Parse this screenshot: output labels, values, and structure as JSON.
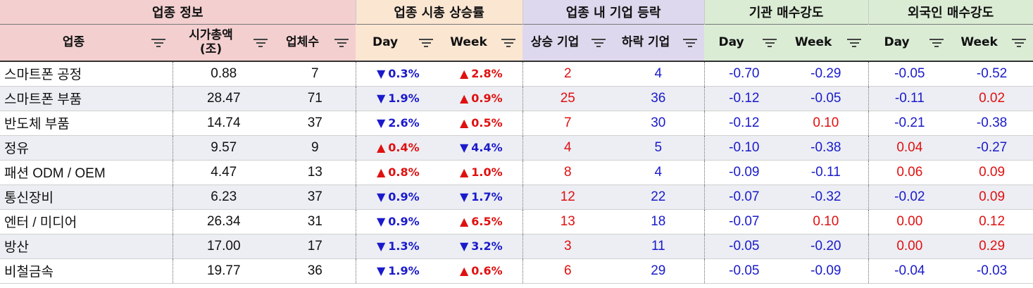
{
  "groups": [
    {
      "label": "업종 정보",
      "span": 3
    },
    {
      "label": "업종 시총 상승률",
      "span": 2
    },
    {
      "label": "업종 내 기업 등락",
      "span": 2
    },
    {
      "label": "기관 매수강도",
      "span": 2
    },
    {
      "label": "외국인 매수강도",
      "span": 2
    }
  ],
  "columns": {
    "sector": "업종",
    "mcap": "시가총액\n(조)",
    "count": "업체수",
    "mcap_day": "Day",
    "mcap_week": "Week",
    "rise": "상승 기업",
    "fall": "하락 기업",
    "inst_day": "Day",
    "inst_week": "Week",
    "for_day": "Day",
    "for_week": "Week"
  },
  "colors": {
    "up": "#e01010",
    "down": "#1a1acc"
  },
  "rows": [
    {
      "sector": "스마트폰 공정",
      "mcap": "0.88",
      "count": "7",
      "day": {
        "dir": "down",
        "v": "0.3%"
      },
      "week": {
        "dir": "up",
        "v": "2.8%"
      },
      "rise": "2",
      "fall": "4",
      "inst_day": "-0.70",
      "inst_week": "-0.29",
      "for_day": "-0.05",
      "for_week": "-0.52"
    },
    {
      "sector": "스마트폰 부품",
      "mcap": "28.47",
      "count": "71",
      "day": {
        "dir": "down",
        "v": "1.9%"
      },
      "week": {
        "dir": "up",
        "v": "0.9%"
      },
      "rise": "25",
      "fall": "36",
      "inst_day": "-0.12",
      "inst_week": "-0.05",
      "for_day": "-0.11",
      "for_week": "0.02"
    },
    {
      "sector": "반도체 부품",
      "mcap": "14.74",
      "count": "37",
      "day": {
        "dir": "down",
        "v": "2.6%"
      },
      "week": {
        "dir": "up",
        "v": "0.5%"
      },
      "rise": "7",
      "fall": "30",
      "inst_day": "-0.12",
      "inst_week": "0.10",
      "for_day": "-0.21",
      "for_week": "-0.38"
    },
    {
      "sector": "정유",
      "mcap": "9.57",
      "count": "9",
      "day": {
        "dir": "up",
        "v": "0.4%"
      },
      "week": {
        "dir": "down",
        "v": "4.4%"
      },
      "rise": "4",
      "fall": "5",
      "inst_day": "-0.10",
      "inst_week": "-0.38",
      "for_day": "0.04",
      "for_week": "-0.27"
    },
    {
      "sector": "패션 ODM / OEM",
      "mcap": "4.47",
      "count": "13",
      "day": {
        "dir": "up",
        "v": "0.8%"
      },
      "week": {
        "dir": "up",
        "v": "1.0%"
      },
      "rise": "8",
      "fall": "4",
      "inst_day": "-0.09",
      "inst_week": "-0.11",
      "for_day": "0.06",
      "for_week": "0.09"
    },
    {
      "sector": "통신장비",
      "mcap": "6.23",
      "count": "37",
      "day": {
        "dir": "down",
        "v": "0.9%"
      },
      "week": {
        "dir": "down",
        "v": "1.7%"
      },
      "rise": "12",
      "fall": "22",
      "inst_day": "-0.07",
      "inst_week": "-0.32",
      "for_day": "-0.02",
      "for_week": "0.09"
    },
    {
      "sector": "엔터 / 미디어",
      "mcap": "26.34",
      "count": "31",
      "day": {
        "dir": "down",
        "v": "0.9%"
      },
      "week": {
        "dir": "up",
        "v": "6.5%"
      },
      "rise": "13",
      "fall": "18",
      "inst_day": "-0.07",
      "inst_week": "0.10",
      "for_day": "0.00",
      "for_week": "0.12"
    },
    {
      "sector": "방산",
      "mcap": "17.00",
      "count": "17",
      "day": {
        "dir": "down",
        "v": "1.3%"
      },
      "week": {
        "dir": "down",
        "v": "3.2%"
      },
      "rise": "3",
      "fall": "11",
      "inst_day": "-0.05",
      "inst_week": "-0.20",
      "for_day": "0.00",
      "for_week": "0.29"
    },
    {
      "sector": "비철금속",
      "mcap": "19.77",
      "count": "36",
      "day": {
        "dir": "down",
        "v": "1.9%"
      },
      "week": {
        "dir": "up",
        "v": "0.6%"
      },
      "rise": "6",
      "fall": "29",
      "inst_day": "-0.05",
      "inst_week": "-0.09",
      "for_day": "-0.04",
      "for_week": "-0.03"
    }
  ]
}
